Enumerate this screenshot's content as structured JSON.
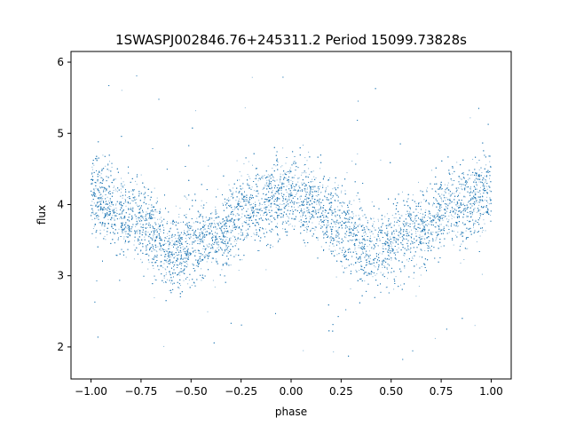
{
  "chart_data": {
    "type": "scatter",
    "title": "1SWASPJ002846.76+245311.2 Period 15099.73828s",
    "xlabel": "phase",
    "ylabel": "flux",
    "xlim": [
      -1.1,
      1.1
    ],
    "ylim": [
      1.55,
      6.15
    ],
    "x_ticks": [
      -1.0,
      -0.75,
      -0.5,
      -0.25,
      0.0,
      0.25,
      0.5,
      0.75,
      1.0
    ],
    "x_tick_labels": [
      "−1.00",
      "−0.75",
      "−0.50",
      "−0.25",
      "0.00",
      "0.25",
      "0.50",
      "0.75",
      "1.00"
    ],
    "y_ticks": [
      2,
      3,
      4,
      5,
      6
    ],
    "y_tick_labels": [
      "2",
      "3",
      "4",
      "5",
      "6"
    ],
    "grid": false,
    "legend": "none",
    "series": [
      {
        "color": "#1f77b4",
        "description": "folded light curve, dense sinusoid with two cycles across phase -1 to 1",
        "phase_range": [
          -1.0,
          1.0
        ],
        "flux_mean_points": [
          {
            "phase": -1.0,
            "flux": 4.1
          },
          {
            "phase": -0.8,
            "flux": 3.85
          },
          {
            "phase": -0.58,
            "flux": 3.35
          },
          {
            "phase": -0.4,
            "flux": 3.55
          },
          {
            "phase": -0.2,
            "flux": 3.95
          },
          {
            "phase": -0.05,
            "flux": 4.12
          },
          {
            "phase": 0.1,
            "flux": 4.0
          },
          {
            "phase": 0.25,
            "flux": 3.7
          },
          {
            "phase": 0.42,
            "flux": 3.35
          },
          {
            "phase": 0.6,
            "flux": 3.55
          },
          {
            "phase": 0.8,
            "flux": 3.95
          },
          {
            "phase": 1.0,
            "flux": 4.15
          }
        ],
        "flux_scatter_sigma": 0.28,
        "flux_min": 1.75,
        "flux_max": 5.9
      }
    ]
  }
}
